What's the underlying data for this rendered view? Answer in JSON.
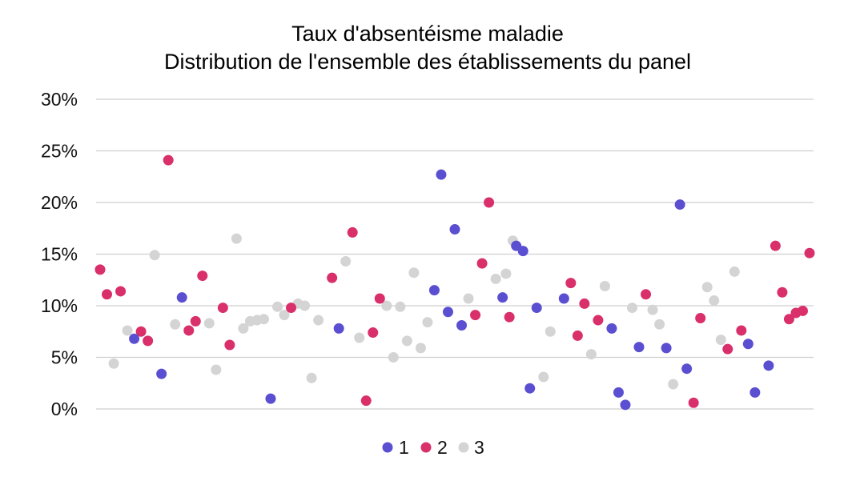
{
  "chart_data": {
    "type": "scatter",
    "title_lines": [
      "Taux d'absentéisme maladie",
      "Distribution de l'ensemble des établissements du panel"
    ],
    "xlabel": "",
    "ylabel": "",
    "ylim": [
      0,
      30
    ],
    "y_ticks": [
      "0%",
      "5%",
      "10%",
      "15%",
      "20%",
      "25%",
      "30%"
    ],
    "y_tick_values": [
      0,
      5,
      10,
      15,
      20,
      25,
      30
    ],
    "xlim": [
      0,
      104
    ],
    "x_ticks_shown": false,
    "grid": true,
    "legend_position": "bottom",
    "colors": {
      "1": "#5b4fd1",
      "2": "#d92f6a",
      "3": "#d4d4d4"
    },
    "series": [
      {
        "name": "1",
        "color": "#5b4fd1",
        "points": [
          [
            5,
            6.8
          ],
          [
            9,
            3.4
          ],
          [
            12,
            10.8
          ],
          [
            25,
            1.0
          ],
          [
            35,
            7.8
          ],
          [
            49,
            11.5
          ],
          [
            50,
            22.7
          ],
          [
            51,
            9.4
          ],
          [
            52,
            17.4
          ],
          [
            53,
            8.1
          ],
          [
            59,
            10.8
          ],
          [
            61,
            15.8
          ],
          [
            62,
            15.3
          ],
          [
            63,
            2.0
          ],
          [
            64,
            9.8
          ],
          [
            68,
            10.7
          ],
          [
            75,
            7.8
          ],
          [
            76,
            1.6
          ],
          [
            77,
            0.4
          ],
          [
            79,
            6.0
          ],
          [
            83,
            5.9
          ],
          [
            85,
            19.8
          ],
          [
            86,
            3.9
          ],
          [
            95,
            6.3
          ],
          [
            96,
            1.6
          ],
          [
            98,
            4.2
          ]
        ]
      },
      {
        "name": "2",
        "color": "#d92f6a",
        "points": [
          [
            0,
            13.5
          ],
          [
            1,
            11.1
          ],
          [
            3,
            11.4
          ],
          [
            6,
            7.5
          ],
          [
            7,
            6.6
          ],
          [
            10,
            24.1
          ],
          [
            13,
            7.6
          ],
          [
            14,
            8.5
          ],
          [
            15,
            12.9
          ],
          [
            18,
            9.8
          ],
          [
            19,
            6.2
          ],
          [
            28,
            9.8
          ],
          [
            34,
            12.7
          ],
          [
            37,
            17.1
          ],
          [
            39,
            0.8
          ],
          [
            40,
            7.4
          ],
          [
            41,
            10.7
          ],
          [
            55,
            9.1
          ],
          [
            56,
            14.1
          ],
          [
            57,
            20.0
          ],
          [
            60,
            8.9
          ],
          [
            69,
            12.2
          ],
          [
            70,
            7.1
          ],
          [
            71,
            10.2
          ],
          [
            73,
            8.6
          ],
          [
            80,
            11.1
          ],
          [
            87,
            0.6
          ],
          [
            88,
            8.8
          ],
          [
            92,
            5.8
          ],
          [
            94,
            7.6
          ],
          [
            99,
            15.8
          ],
          [
            100,
            11.3
          ],
          [
            101,
            8.7
          ],
          [
            102,
            9.3
          ],
          [
            103,
            9.5
          ],
          [
            104,
            15.1
          ]
        ]
      },
      {
        "name": "3",
        "color": "#d4d4d4",
        "points": [
          [
            2,
            4.4
          ],
          [
            4,
            7.6
          ],
          [
            8,
            14.9
          ],
          [
            11,
            8.2
          ],
          [
            16,
            8.3
          ],
          [
            17,
            3.8
          ],
          [
            20,
            16.5
          ],
          [
            21,
            7.8
          ],
          [
            22,
            8.5
          ],
          [
            23,
            8.6
          ],
          [
            24,
            8.7
          ],
          [
            26,
            9.9
          ],
          [
            27,
            9.1
          ],
          [
            29,
            10.2
          ],
          [
            30,
            10.0
          ],
          [
            31,
            3.0
          ],
          [
            32,
            8.6
          ],
          [
            36,
            14.3
          ],
          [
            38,
            6.9
          ],
          [
            42,
            10.0
          ],
          [
            43,
            5.0
          ],
          [
            44,
            9.9
          ],
          [
            45,
            6.6
          ],
          [
            46,
            13.2
          ],
          [
            47,
            5.9
          ],
          [
            48,
            8.4
          ],
          [
            54,
            10.7
          ],
          [
            58,
            12.6
          ],
          [
            59.5,
            13.1
          ],
          [
            60.5,
            16.3
          ],
          [
            65,
            3.1
          ],
          [
            66,
            7.5
          ],
          [
            72,
            5.3
          ],
          [
            74,
            11.9
          ],
          [
            78,
            9.8
          ],
          [
            81,
            9.6
          ],
          [
            82,
            8.2
          ],
          [
            84,
            2.4
          ],
          [
            89,
            11.8
          ],
          [
            90,
            10.5
          ],
          [
            91,
            6.7
          ],
          [
            93,
            13.3
          ]
        ]
      }
    ]
  }
}
